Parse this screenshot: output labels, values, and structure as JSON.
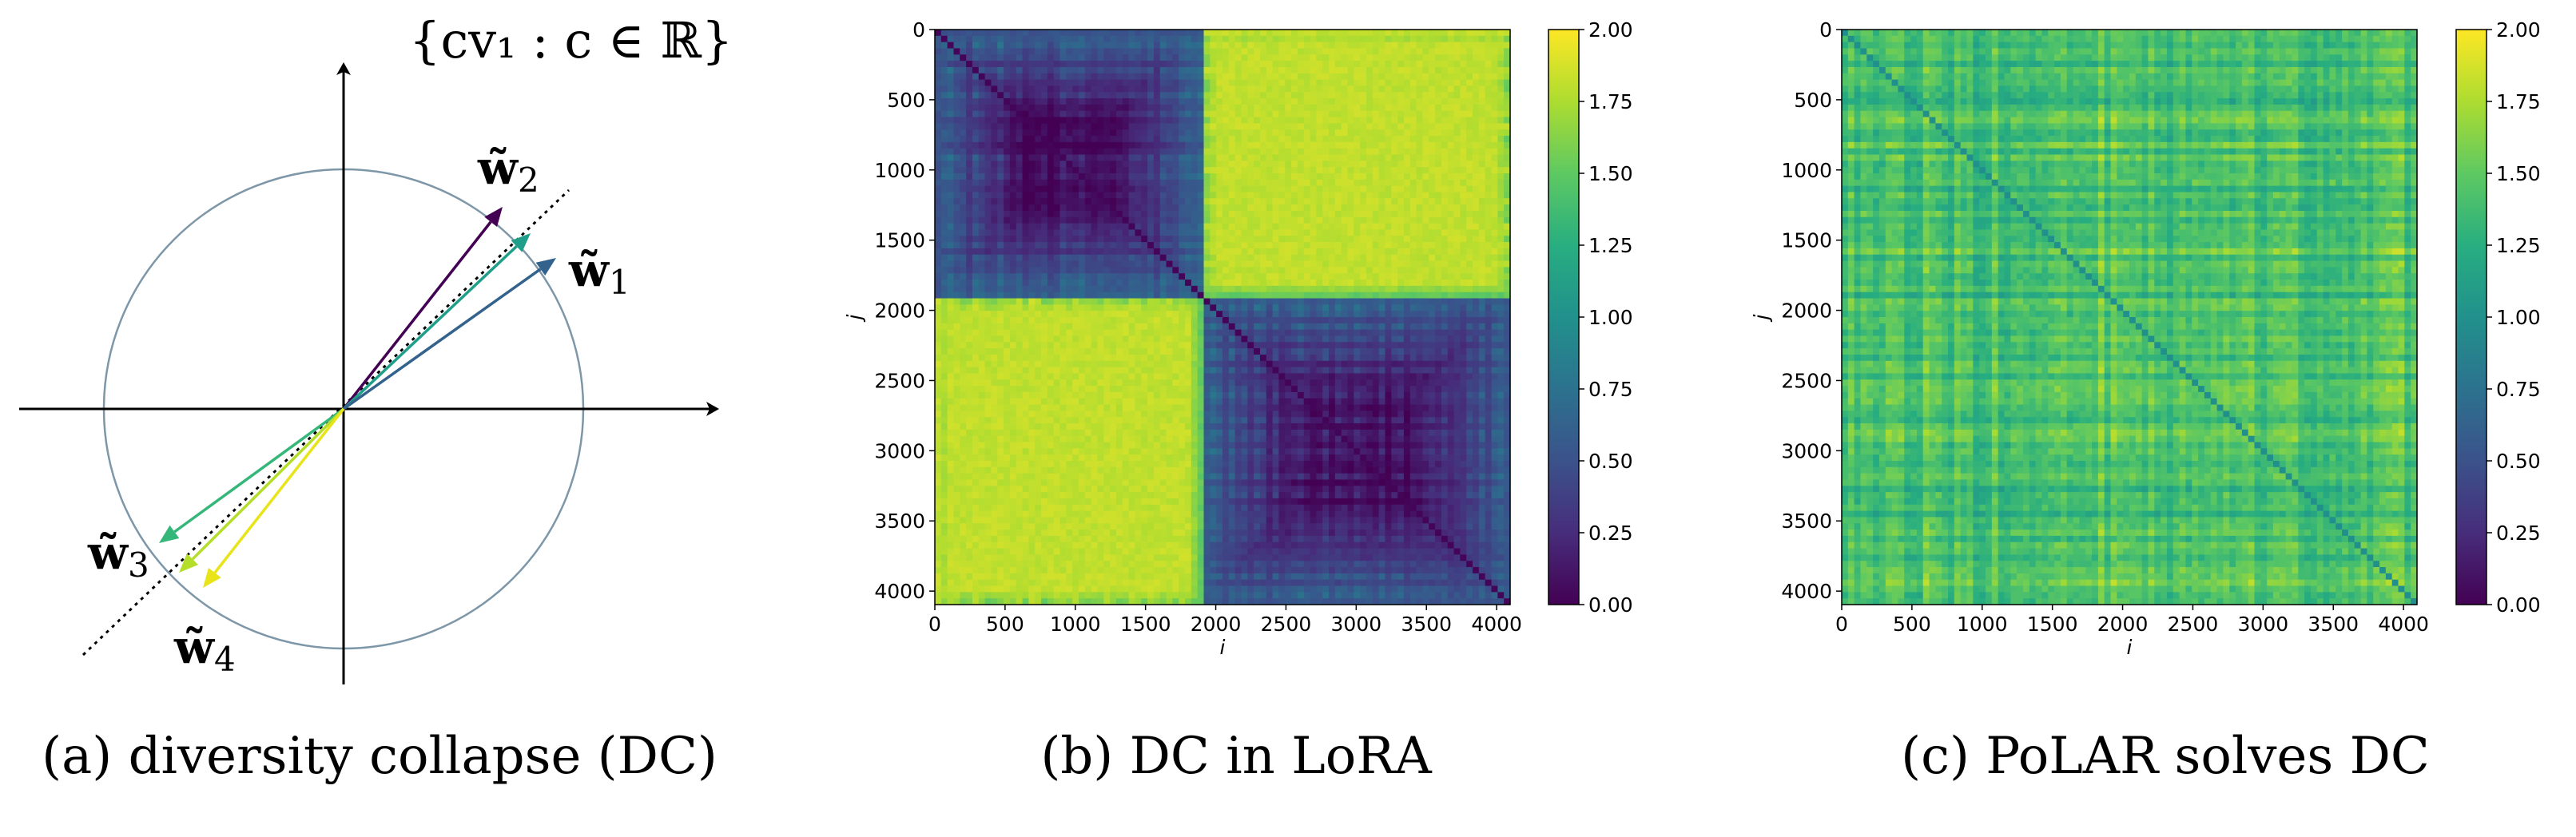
{
  "colors": {
    "circle": "#7d97a8",
    "w1": "#33638d",
    "w2": "#440154",
    "w2b": "#1f9e89",
    "w3": "#35b779",
    "w4": "#e8e419",
    "w4b": "#b5de2b",
    "axes": "#000000"
  },
  "panel_a": {
    "caption": "(a) diversity collapse (DC)",
    "set_label": "{cv₁ : c ∈ ℝ}",
    "vectors": [
      {
        "base": "w̃",
        "sub": "1"
      },
      {
        "base": "w̃",
        "sub": "2"
      },
      {
        "base": "w̃",
        "sub": "3"
      },
      {
        "base": "w̃",
        "sub": "4"
      }
    ]
  },
  "chart_data": [
    {
      "type": "heatmap",
      "panel": "b",
      "title": "(b) DC in LoRA",
      "xlabel": "i",
      "ylabel": "j",
      "xlim": [
        0,
        4096
      ],
      "ylim": [
        4096,
        0
      ],
      "xticks": [
        0,
        500,
        1000,
        1500,
        2000,
        2500,
        3000,
        3500,
        4000
      ],
      "yticks": [
        0,
        500,
        1000,
        1500,
        2000,
        2500,
        3000,
        3500,
        4000
      ],
      "colorbar": {
        "min": 0.0,
        "max": 2.0,
        "ticks": [
          "0.00",
          "0.25",
          "0.50",
          "0.75",
          "1.00",
          "1.25",
          "1.50",
          "1.75",
          "2.00"
        ],
        "colormap": "viridis"
      },
      "structure": {
        "split": 1900,
        "within_block_value": 0.25,
        "cross_block_value": 1.85,
        "diagonal_value": 0.0
      }
    },
    {
      "type": "heatmap",
      "panel": "c",
      "title": "(c) PoLAR solves DC",
      "xlabel": "i",
      "ylabel": "j",
      "xlim": [
        0,
        4096
      ],
      "ylim": [
        4096,
        0
      ],
      "xticks": [
        0,
        500,
        1000,
        1500,
        2000,
        2500,
        3000,
        3500,
        4000
      ],
      "yticks": [
        0,
        500,
        1000,
        1500,
        2000,
        2500,
        3000,
        3500,
        4000
      ],
      "colorbar": {
        "min": 0.0,
        "max": 2.0,
        "ticks": [
          "0.00",
          "0.25",
          "0.50",
          "0.75",
          "1.00",
          "1.25",
          "1.50",
          "1.75",
          "2.00"
        ],
        "colormap": "viridis"
      },
      "structure": {
        "mean_value": 1.4,
        "spread": 0.25,
        "diagonal_value": 1.0
      }
    }
  ]
}
